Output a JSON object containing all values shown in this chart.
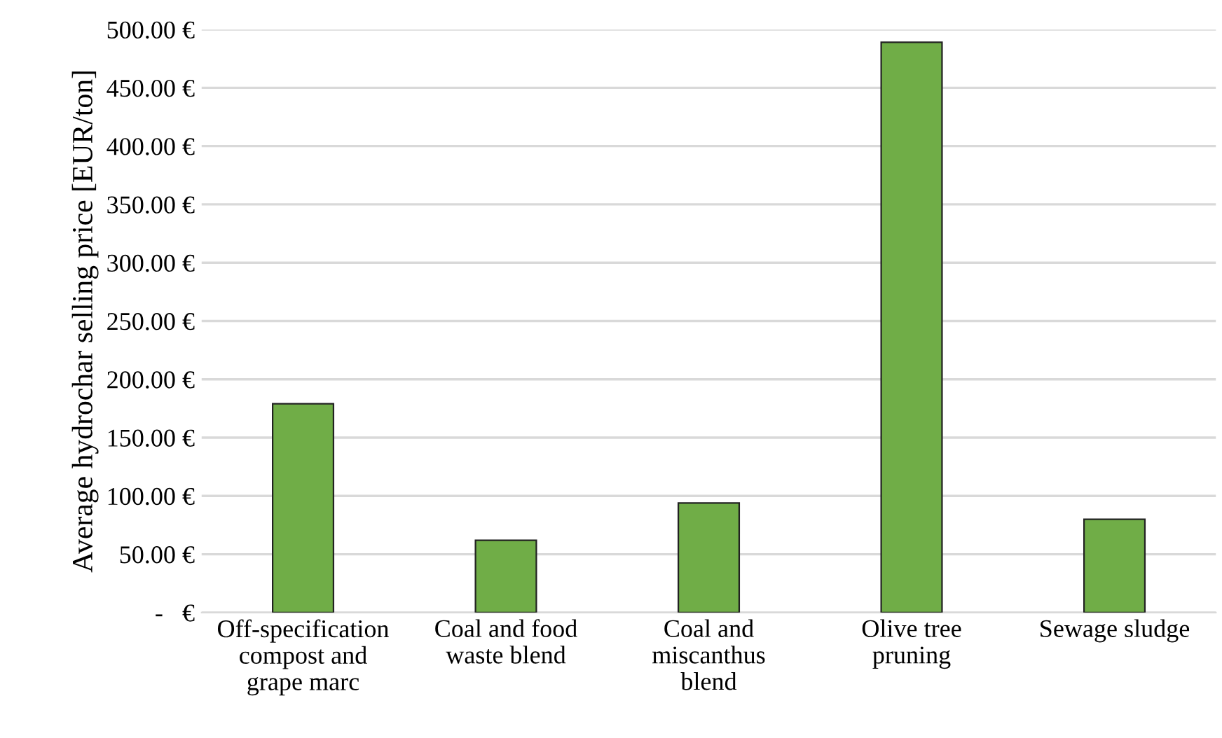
{
  "chart_data": {
    "type": "bar",
    "ylabel": "Average hydrochar selling price [EUR/ton]",
    "categories": [
      "Off-specification\ncompost and\ngrape marc",
      "Coal and food\nwaste blend",
      "Coal and\nmiscanthus\nblend",
      "Olive tree\npruning",
      "Sewage sludge"
    ],
    "values": [
      179,
      62,
      94,
      489,
      80
    ],
    "color": "#70ad47",
    "ylim": [
      0,
      500
    ],
    "yticks": [
      {
        "value": 0,
        "label": "-   €"
      },
      {
        "value": 50,
        "label": "50.00 €"
      },
      {
        "value": 100,
        "label": "100.00 €"
      },
      {
        "value": 150,
        "label": "150.00 €"
      },
      {
        "value": 200,
        "label": "200.00 €"
      },
      {
        "value": 250,
        "label": "250.00 €"
      },
      {
        "value": 300,
        "label": "300.00 €"
      },
      {
        "value": 350,
        "label": "350.00 €"
      },
      {
        "value": 400,
        "label": "400.00 €"
      },
      {
        "value": 450,
        "label": "450.00 €"
      },
      {
        "value": 500,
        "label": "500.00 €"
      }
    ],
    "grid": "y"
  }
}
